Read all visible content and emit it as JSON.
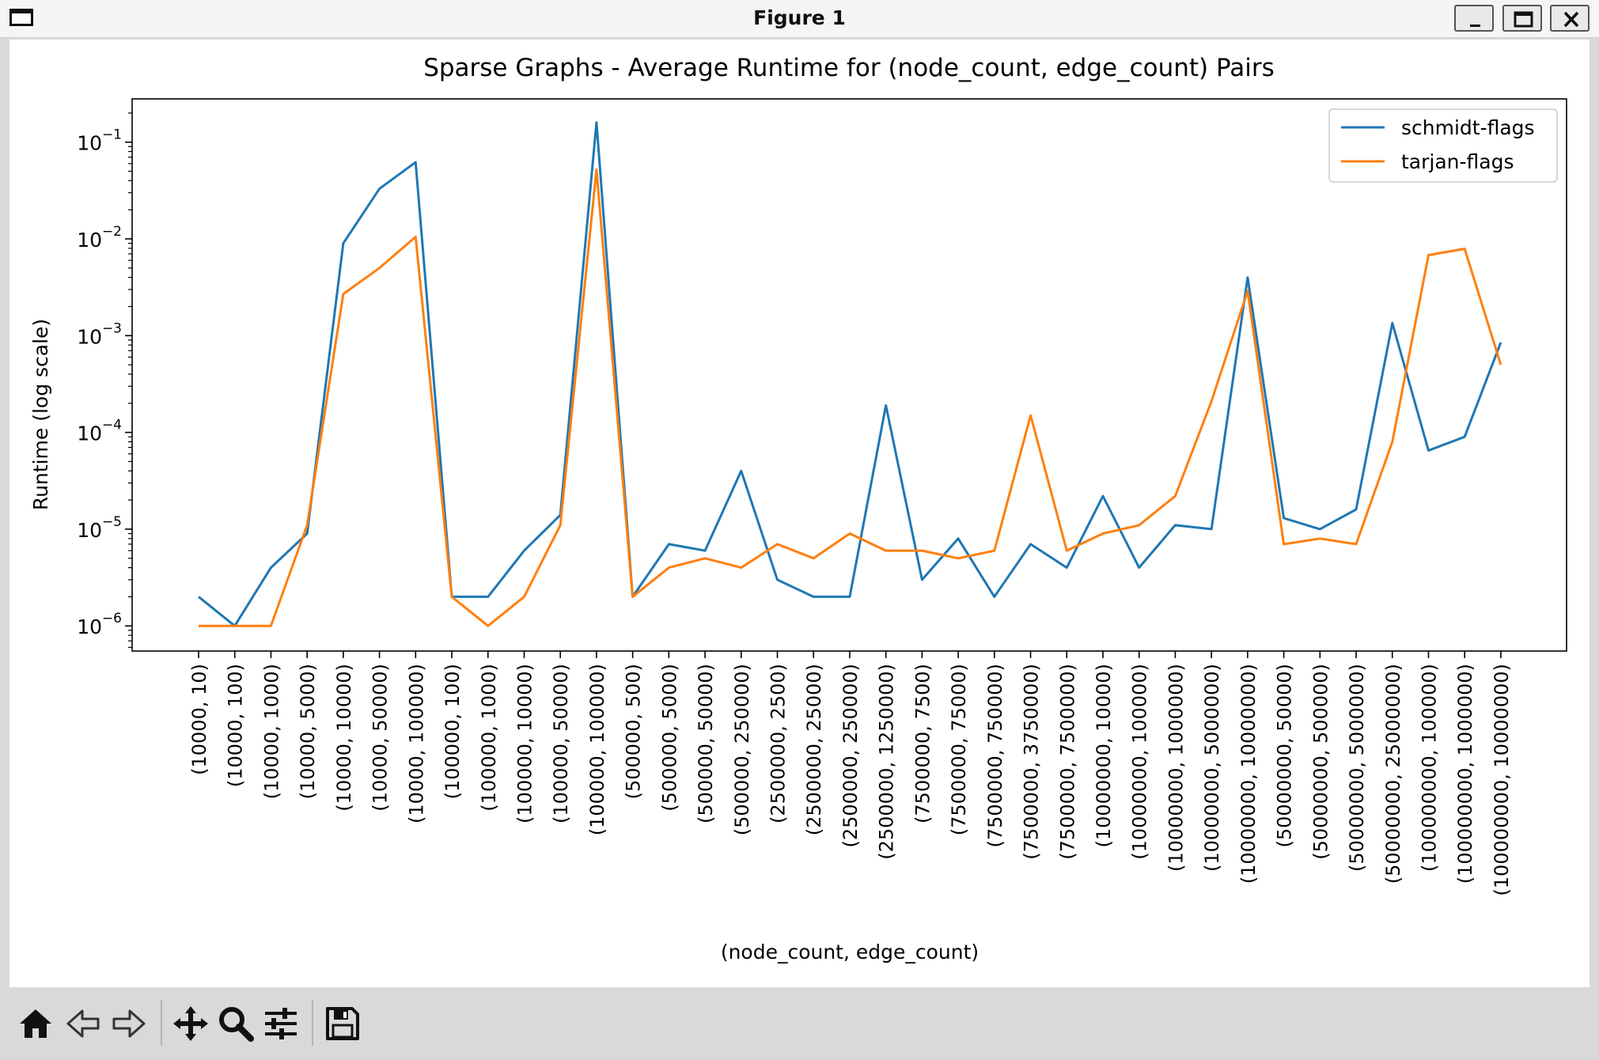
{
  "window": {
    "title": "Figure 1",
    "icon": "window-icon",
    "buttons": [
      "minimize-icon",
      "maximize-icon",
      "close-icon"
    ]
  },
  "toolbar": {
    "items": [
      "home-icon",
      "back-arrow-icon",
      "forward-arrow-icon",
      "pan-icon",
      "zoom-icon",
      "configure-subplots-icon",
      "save-icon"
    ]
  },
  "chart_data": {
    "type": "line",
    "title": "Sparse Graphs - Average Runtime for (node_count, edge_count) Pairs",
    "xlabel": "(node_count, edge_count)",
    "ylabel": "Runtime (log scale)",
    "yscale": "log",
    "ylim": [
      5.5e-07,
      0.28
    ],
    "yticks": [
      {
        "value": 1e-06,
        "label": "10",
        "exp": "−6"
      },
      {
        "value": 1e-05,
        "label": "10",
        "exp": "−5"
      },
      {
        "value": 0.0001,
        "label": "10",
        "exp": "−4"
      },
      {
        "value": 0.001,
        "label": "10",
        "exp": "−3"
      },
      {
        "value": 0.01,
        "label": "10",
        "exp": "−2"
      },
      {
        "value": 0.1,
        "label": "10",
        "exp": "−1"
      }
    ],
    "grid": false,
    "legend_position": "top-right",
    "categories": [
      "(10000, 10)",
      "(10000, 100)",
      "(10000, 1000)",
      "(10000, 5000)",
      "(10000, 10000)",
      "(10000, 50000)",
      "(10000, 100000)",
      "(100000, 100)",
      "(100000, 1000)",
      "(100000, 10000)",
      "(100000, 50000)",
      "(100000, 100000)",
      "(500000, 500)",
      "(500000, 5000)",
      "(500000, 50000)",
      "(500000, 250000)",
      "(2500000, 2500)",
      "(2500000, 25000)",
      "(2500000, 250000)",
      "(2500000, 1250000)",
      "(7500000, 7500)",
      "(7500000, 75000)",
      "(7500000, 750000)",
      "(7500000, 3750000)",
      "(7500000, 7500000)",
      "(10000000, 10000)",
      "(10000000, 100000)",
      "(10000000, 1000000)",
      "(10000000, 5000000)",
      "(10000000, 10000000)",
      "(50000000, 50000)",
      "(50000000, 500000)",
      "(50000000, 5000000)",
      "(50000000, 25000000)",
      "(100000000, 100000)",
      "(100000000, 1000000)",
      "(100000000, 10000000)"
    ],
    "series": [
      {
        "name": "schmidt-flags",
        "color": "#1f77b4",
        "values": [
          2e-06,
          1e-06,
          4e-06,
          9e-06,
          0.009,
          0.033,
          0.062,
          2e-06,
          2e-06,
          6e-06,
          1.4e-05,
          0.16,
          2e-06,
          7e-06,
          6e-06,
          4e-05,
          3e-06,
          2e-06,
          2e-06,
          0.00019,
          3e-06,
          8e-06,
          2e-06,
          7e-06,
          4e-06,
          2.2e-05,
          4e-06,
          1.1e-05,
          1e-05,
          0.004,
          1.3e-05,
          1e-05,
          1.6e-05,
          0.00135,
          6.5e-05,
          9e-05,
          0.00085
        ]
      },
      {
        "name": "tarjan-flags",
        "color": "#ff7f0e",
        "values": [
          1e-06,
          1e-06,
          1e-06,
          1.1e-05,
          0.0027,
          0.005,
          0.0105,
          2e-06,
          1e-06,
          2e-06,
          1.1e-05,
          0.052,
          2e-06,
          4e-06,
          5e-06,
          4e-06,
          7e-06,
          5e-06,
          9e-06,
          6e-06,
          6e-06,
          5e-06,
          6e-06,
          0.00015,
          6e-06,
          9e-06,
          1.1e-05,
          2.2e-05,
          0.00021,
          0.0029,
          7e-06,
          8e-06,
          7e-06,
          8e-05,
          0.0068,
          0.0079,
          0.0005
        ]
      }
    ]
  }
}
